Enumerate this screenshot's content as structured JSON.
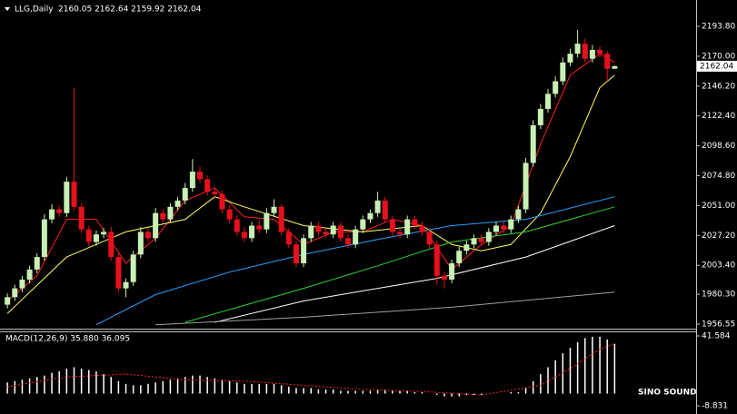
{
  "chart_data": [
    {
      "type": "candlestick",
      "title": "LLG,Daily",
      "subtitle": "2160.05 2162.64 2159.92 2162.04",
      "up_color": "#c8f0b4",
      "down_color": "#e8101c",
      "xlim": [
        -1,
        93
      ],
      "ylim": [
        1952.9,
        2214.8
      ],
      "yticks": [
        {
          "value": 2193.8,
          "label": "2193.80"
        },
        {
          "value": 2170,
          "label": "2170.00"
        },
        {
          "value": 2146.2,
          "label": "2146.20"
        },
        {
          "value": 2122.4,
          "label": "2122.40"
        },
        {
          "value": 2098.6,
          "label": "2098.60"
        },
        {
          "value": 2074.8,
          "label": "2074.80"
        },
        {
          "value": 2051,
          "label": "2051.00"
        },
        {
          "value": 2027.2,
          "label": "2027.20"
        },
        {
          "value": 2003.4,
          "label": "2003.40"
        },
        {
          "value": 1980.3,
          "label": "1980.30"
        },
        1956.55
      ],
      "last_price": 2162.04,
      "open": [
        1972,
        1978,
        1985,
        1992,
        2000,
        2010,
        2040,
        2048,
        2045,
        2070,
        2050,
        2032,
        2022,
        2028,
        2030,
        2010,
        1985,
        1990,
        2012,
        2030,
        2025,
        2045,
        2040,
        2050,
        2055,
        2065,
        2078,
        2072,
        2062,
        2060,
        2048,
        2040,
        2030,
        2025,
        2035,
        2032,
        2045,
        2050,
        2030,
        2020,
        2005,
        2025,
        2035,
        2030,
        2028,
        2035,
        2025,
        2020,
        2032,
        2040,
        2045,
        2055,
        2040,
        2030,
        2028,
        2040,
        2035,
        2030,
        2020,
        1995,
        1992,
        2005,
        2015,
        2020,
        2025,
        2022,
        2030,
        2035,
        2032,
        2040,
        2048,
        2085,
        2115,
        2128,
        2140,
        2150,
        2165,
        2172,
        2180,
        2168,
        2175,
        2172,
        2160.05
      ],
      "high": [
        1981,
        1988,
        1995,
        2003,
        2013,
        2044,
        2052,
        2051,
        2074,
        2145,
        2053,
        2035,
        2031,
        2033,
        2034,
        2013,
        1993,
        2015,
        2034,
        2033,
        2049,
        2048,
        2053,
        2058,
        2069,
        2088,
        2082,
        2075,
        2066,
        2063,
        2051,
        2043,
        2034,
        2038,
        2039,
        2049,
        2056,
        2052,
        2033,
        2023,
        2028,
        2038,
        2038,
        2033,
        2038,
        2038,
        2028,
        2035,
        2043,
        2048,
        2062,
        2058,
        2043,
        2033,
        2043,
        2043,
        2038,
        2033,
        2023,
        1998,
        2008,
        2018,
        2023,
        2028,
        2028,
        2033,
        2038,
        2038,
        2043,
        2051,
        2089,
        2119,
        2132,
        2144,
        2154,
        2169,
        2176,
        2191,
        2184,
        2179,
        2178,
        2174,
        2162.64
      ],
      "low": [
        1969,
        1975,
        1982,
        1989,
        1997,
        2007,
        2037,
        2042,
        2042,
        2047,
        2029,
        2019,
        2019,
        2025,
        2007,
        1982,
        1978,
        1987,
        2009,
        2022,
        2022,
        2037,
        2037,
        2047,
        2052,
        2062,
        2069,
        2059,
        2057,
        2045,
        2037,
        2027,
        2022,
        2022,
        2029,
        2029,
        2042,
        2027,
        2017,
        2002,
        2002,
        2022,
        2027,
        2025,
        2025,
        2022,
        2017,
        2017,
        2029,
        2037,
        2042,
        2037,
        2027,
        2025,
        2025,
        2032,
        2027,
        2017,
        1988,
        1985,
        1989,
        2002,
        2012,
        2017,
        2019,
        2019,
        2027,
        2029,
        2029,
        2037,
        2045,
        2082,
        2112,
        2125,
        2137,
        2147,
        2162,
        2169,
        2165,
        2165,
        2169,
        2150,
        2159.92
      ],
      "close": [
        1978,
        1985,
        1992,
        2000,
        2010,
        2040,
        2048,
        2045,
        2070,
        2050,
        2032,
        2022,
        2028,
        2030,
        2010,
        1985,
        1990,
        2012,
        2030,
        2025,
        2045,
        2040,
        2050,
        2055,
        2065,
        2078,
        2072,
        2062,
        2060,
        2048,
        2040,
        2030,
        2025,
        2035,
        2032,
        2045,
        2050,
        2030,
        2020,
        2005,
        2025,
        2035,
        2030,
        2028,
        2035,
        2025,
        2020,
        2032,
        2040,
        2045,
        2055,
        2040,
        2030,
        2028,
        2040,
        2035,
        2030,
        2020,
        1995,
        1992,
        2005,
        2015,
        2020,
        2025,
        2022,
        2030,
        2035,
        2032,
        2040,
        2048,
        2085,
        2115,
        2128,
        2140,
        2150,
        2165,
        2172,
        2180,
        2168,
        2175,
        2172,
        2160,
        2162.04
      ],
      "moving_averages": [
        {
          "color": "#ff2020",
          "x": [
            0,
            4,
            8,
            12,
            16,
            20,
            24,
            28,
            32,
            36,
            40,
            44,
            48,
            52,
            56,
            60,
            64,
            68,
            72,
            76,
            80,
            82
          ],
          "values": [
            1975,
            1995,
            2040,
            2040,
            2005,
            2025,
            2055,
            2065,
            2042,
            2040,
            2020,
            2030,
            2030,
            2040,
            2035,
            2000,
            2020,
            2035,
            2100,
            2155,
            2172,
            2165
          ]
        },
        {
          "color": "#ffff60",
          "x": [
            0,
            8,
            16,
            24,
            28,
            32,
            40,
            48,
            56,
            60,
            64,
            68,
            72,
            76,
            80,
            82
          ],
          "values": [
            1965,
            2010,
            2030,
            2040,
            2058,
            2050,
            2035,
            2030,
            2035,
            2020,
            2015,
            2020,
            2045,
            2090,
            2145,
            2155
          ]
        },
        {
          "color": "#2aa0ff",
          "x": [
            12,
            20,
            30,
            40,
            50,
            60,
            70,
            82
          ],
          "values": [
            1956,
            1980,
            1998,
            2012,
            2024,
            2035,
            2040,
            2058
          ]
        },
        {
          "color": "#30d030",
          "x": [
            24,
            40,
            50,
            60,
            70,
            82
          ],
          "values": [
            1958,
            1985,
            2003,
            2022,
            2030,
            2050
          ]
        },
        {
          "color": "#ffffff",
          "x": [
            28,
            40,
            58,
            70,
            82
          ],
          "values": [
            1958,
            1975,
            1993,
            2010,
            2035
          ]
        },
        {
          "color": "#a0a0a0",
          "x": [
            20,
            40,
            60,
            82
          ],
          "values": [
            1956,
            1962,
            1970,
            1982
          ]
        }
      ]
    },
    {
      "type": "macd",
      "title": "MACD(12,26,9) 35.880 36.095",
      "xlim": [
        -1,
        93
      ],
      "ylim": [
        -13.4,
        44.2
      ],
      "yticks": [
        41.584,
        -8.831
      ],
      "histogram_color": "#ffffff",
      "histogram": [
        8,
        9,
        10,
        11,
        12,
        13,
        15,
        16,
        18,
        19,
        18,
        17,
        16,
        14,
        12,
        9,
        7,
        6,
        6,
        7,
        8,
        9,
        10,
        11,
        12,
        13,
        13,
        12,
        11,
        10,
        9,
        8,
        7,
        7,
        7,
        7,
        7,
        6,
        5,
        4,
        4,
        4,
        3,
        3,
        3,
        2,
        2,
        2,
        2,
        2,
        3,
        3,
        2,
        2,
        2,
        1,
        1,
        0,
        -1,
        -2,
        -2,
        -2,
        -1,
        -1,
        -1,
        0,
        0,
        0,
        1,
        1,
        4,
        9,
        14,
        19,
        24,
        29,
        33,
        37,
        40,
        41,
        41,
        39,
        35.88
      ],
      "signal": {
        "color": "#ff2020",
        "x": [
          0,
          8,
          16,
          24,
          32,
          40,
          48,
          56,
          64,
          72,
          76,
          80,
          82
        ],
        "values": [
          5,
          12,
          14,
          10,
          9,
          6,
          3,
          1.5,
          -1,
          6,
          18,
          32,
          36.095
        ]
      }
    }
  ],
  "watermark": "SINO SOUND"
}
